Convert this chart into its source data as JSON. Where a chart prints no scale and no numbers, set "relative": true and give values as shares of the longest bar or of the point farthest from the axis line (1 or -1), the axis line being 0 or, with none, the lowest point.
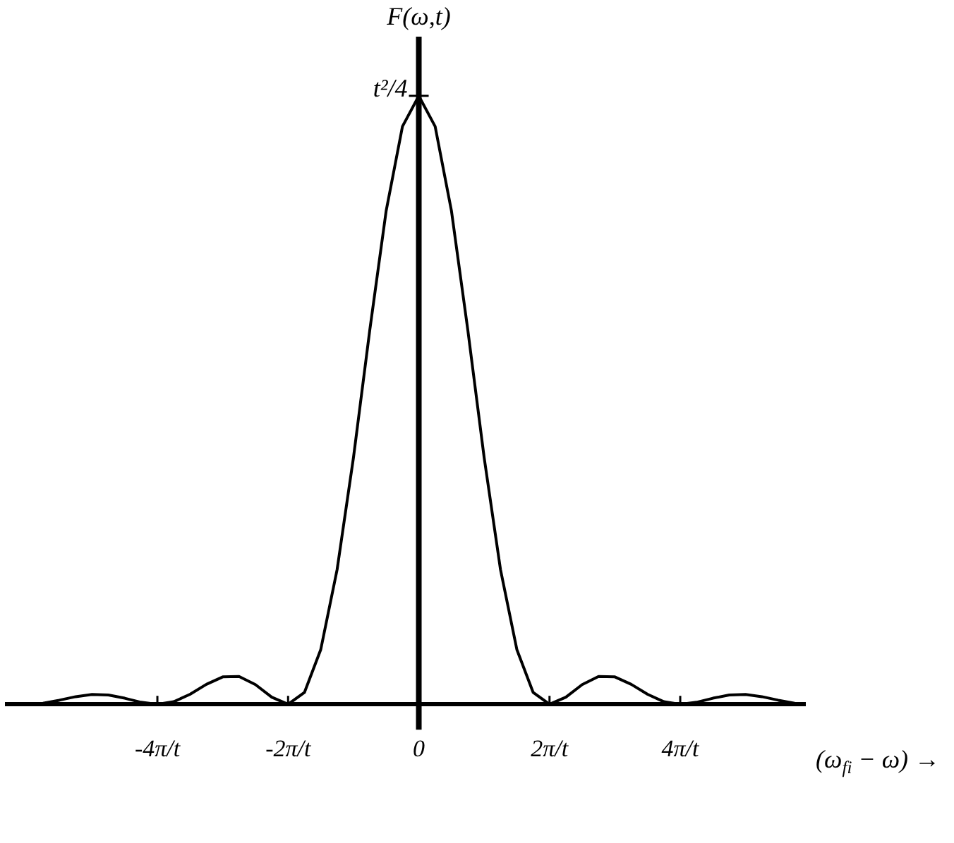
{
  "chart_data": {
    "type": "line",
    "relative": true,
    "ylabel": "F(ω,t)",
    "xlabel": "(ω$_{fi}$ − ω) →",
    "annotations": [
      {
        "text": "t²/4",
        "x": 0,
        "y": 1
      }
    ],
    "x": [
      -6.25,
      -6,
      -5.75,
      -5.5,
      -5.25,
      -5,
      -4.75,
      -4.5,
      -4.25,
      -4,
      -3.75,
      -3.5,
      -3.25,
      -3,
      -2.75,
      -2.5,
      -2.25,
      -2,
      -1.75,
      -1.5,
      -1.25,
      -1,
      -0.75,
      -0.5,
      -0.25,
      0,
      0.25,
      0.5,
      0.75,
      1,
      1.25,
      1.5,
      1.75,
      2,
      2.25,
      2.5,
      2.75,
      3,
      3.25,
      3.5,
      3.75,
      4,
      4.25,
      4.5,
      4.75,
      5,
      5.25,
      5.5,
      5.75
    ],
    "series": [
      {
        "color": "#000000",
        "values": [
          0.0015,
          0,
          0.0018,
          0.0067,
          0.0125,
          0.0162,
          0.0153,
          0.01,
          0.0033,
          0,
          0.0042,
          0.0165,
          0.0328,
          0.045,
          0.0457,
          0.0324,
          0.0117,
          0,
          0.0194,
          0.0901,
          0.2214,
          0.4053,
          0.615,
          0.8106,
          0.9497,
          1,
          0.9497,
          0.8106,
          0.615,
          0.4053,
          0.2214,
          0.0901,
          0.0194,
          0,
          0.0117,
          0.0324,
          0.0457,
          0.045,
          0.0328,
          0.0165,
          0.0042,
          0,
          0.0033,
          0.01,
          0.0153,
          0.0162,
          0.0125,
          0.0067,
          0.0018
        ]
      }
    ],
    "xlim": [
      -6.3,
      5.9
    ],
    "xticks": [
      {
        "value": -4,
        "label": "-4π/t"
      },
      {
        "value": -2,
        "label": "-2π/t"
      },
      0,
      {
        "value": 2,
        "label": "2π/t"
      },
      {
        "value": 4,
        "label": "4π/t"
      }
    ],
    "legend": false,
    "marker": "none",
    "line_style": "solid"
  }
}
